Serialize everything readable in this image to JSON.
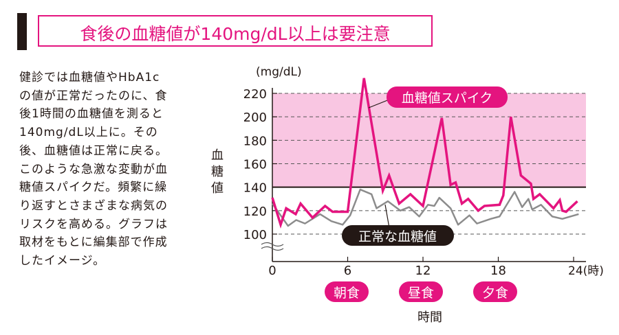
{
  "title": "食後の血糖値が140mg/dL以上は要注意",
  "description_lines": [
    "健診では血糖値やHbA1c",
    "の値が正常だったのに、食",
    "後1時間の血糖値を測ると",
    "140mg/dL以上に。その",
    "後、血糖値は正常に戻る。",
    "このような急激な変動が血",
    "糖値スパイクだ。頻繁に繰",
    "り返すとさまざまな病気の",
    "リスクを高める。グラフは",
    "取材をもとに編集部で作成",
    "したイメージ。"
  ],
  "colors": {
    "accent": "#e4147f",
    "band": "#f9c6e2",
    "normal": "#8c8c8c",
    "dark": "#231815"
  },
  "chart_data": {
    "type": "line",
    "title": "食後の血糖値が140mg/dL以上は要注意",
    "ylabel": "血糖値",
    "yunit": "(mg/dL)",
    "xlabel": "時間",
    "xunit": "24(時)",
    "xlim": [
      0,
      24
    ],
    "ylim": [
      100,
      220
    ],
    "yticks": [
      100,
      120,
      140,
      160,
      180,
      200,
      220
    ],
    "xticks": [
      "0",
      "6",
      "12",
      "18"
    ],
    "threshold": 140,
    "highlight_band": [
      140,
      220
    ],
    "grid": true,
    "meals": [
      {
        "label": "朝食",
        "x": 6
      },
      {
        "label": "昼食",
        "x": 12
      },
      {
        "label": "夕食",
        "x": 18
      }
    ],
    "series": [
      {
        "name": "血糖値スパイク",
        "x": [
          0,
          0.66,
          1.1,
          1.86,
          2.25,
          3.2,
          4.2,
          4.8,
          6.0,
          7.3,
          8.8,
          9.3,
          10.1,
          11,
          12,
          13.5,
          14.2,
          14.6,
          15.1,
          15.6,
          16.4,
          16.9,
          18.1,
          18.4,
          19,
          19.8,
          20.6,
          20.8,
          21.3,
          22.4,
          22.9,
          23.1,
          23.4,
          24.3
        ],
        "values": [
          131,
          108,
          122,
          117,
          126,
          114,
          124,
          119,
          119,
          233,
          137,
          150,
          126,
          134,
          124,
          199,
          142,
          144,
          126,
          130,
          120,
          124,
          125,
          133,
          200,
          150,
          143,
          130,
          134,
          122,
          129,
          120,
          119,
          128
        ]
      },
      {
        "name": "正常な血糖値",
        "x": [
          0,
          1.25,
          1.9,
          2.6,
          3.8,
          4.7,
          5.6,
          6.2,
          7.0,
          7.9,
          8.3,
          9.2,
          10.2,
          10.9,
          11.7,
          12.4,
          12.9,
          13.3,
          14.2,
          14.8,
          15.7,
          16.3,
          17.4,
          18.1,
          19.3,
          19.9,
          20.4,
          20.7,
          21.4,
          22.3,
          23.1,
          24.4
        ],
        "values": [
          126,
          107,
          112,
          109,
          117,
          111,
          108,
          116,
          138,
          134,
          122,
          128,
          120,
          123,
          115,
          125,
          124,
          131,
          122,
          108,
          116,
          109,
          113,
          115,
          136,
          123,
          130,
          121,
          125,
          115,
          113,
          117
        ]
      }
    ]
  }
}
